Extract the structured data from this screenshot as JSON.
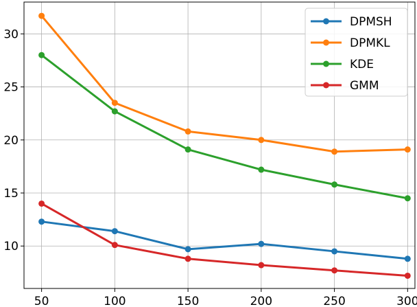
{
  "chart_data": {
    "type": "line",
    "title": "",
    "xlabel": "",
    "ylabel": "",
    "x": [
      50,
      100,
      150,
      200,
      250,
      300
    ],
    "xlim": [
      38,
      305
    ],
    "ylim": [
      6.0,
      33.0
    ],
    "x_ticks": [
      50,
      100,
      150,
      200,
      250,
      300
    ],
    "y_ticks": [
      10,
      15,
      20,
      25,
      30
    ],
    "x_tick_labels": [
      "50",
      "100",
      "150",
      "200",
      "250",
      "300"
    ],
    "y_tick_labels": [
      "10",
      "15",
      "20",
      "25",
      "30"
    ],
    "grid": true,
    "legend_position": "top-right",
    "series": [
      {
        "name": "DPMSH",
        "color": "#1f77b4",
        "values": [
          12.3,
          11.4,
          9.7,
          10.2,
          9.5,
          8.8
        ]
      },
      {
        "name": "DPMKL",
        "color": "#ff7f0e",
        "values": [
          31.7,
          23.5,
          20.8,
          20.0,
          18.9,
          19.1
        ]
      },
      {
        "name": "KDE",
        "color": "#2ca02c",
        "values": [
          28.0,
          22.7,
          19.1,
          17.2,
          15.8,
          14.5
        ]
      },
      {
        "name": "GMM",
        "color": "#d62728",
        "values": [
          14.0,
          10.1,
          8.8,
          8.2,
          7.7,
          7.2
        ]
      }
    ]
  }
}
